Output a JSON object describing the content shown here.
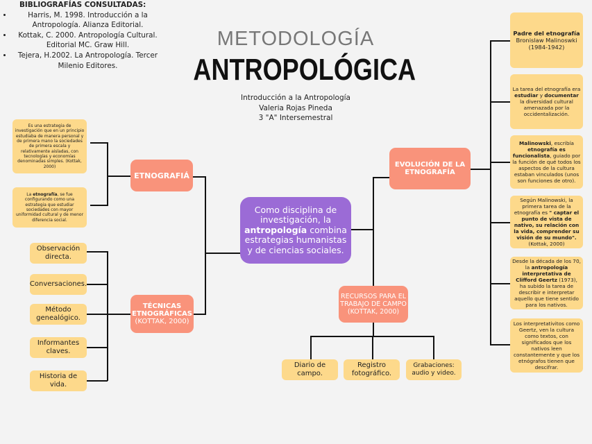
{
  "bibliography": {
    "title": "BIBLIOGRAFÍAS CONSULTADAS:",
    "items": [
      "Harris, M. 1998. Introducción a la Antropología. Alianza Editorial.",
      "Kottak, C. 2000. Antropología Cultural. Editorial MC. Graw Hill.",
      "Tejera, H.2002. La Antropología. Tercer Milenio Editores."
    ]
  },
  "title": {
    "line1": "METODOLOGÍA",
    "line2": "ANTROPOLÓGICA"
  },
  "subtitle": [
    "Introducción a la Antropología",
    "Valeria Rojas Pineda",
    "3 \"A\" Intersemestral"
  ],
  "center": [
    {
      "t": "Como disciplina de investigación, la "
    },
    {
      "t": "antropología",
      "b": true
    },
    {
      "t": " combina estrategias humanistas y de ciencias sociales."
    }
  ],
  "etnografia": {
    "label": "ETNOGRAFIÁ",
    "notes": [
      [
        {
          "t": "Es una estrategia de investigación que en un principio estudiaba de manera personal y de primera mano la sociedades de primera escala y relativamente aisladas, con tecnologías y economías denominadas simples. (Kottak, 2000)"
        }
      ],
      [
        {
          "t": "La "
        },
        {
          "t": "etnografía",
          "b": true
        },
        {
          "t": ", se fue configurando como una estrategia que estudiar sociedades con mayor uniformidad cultural y de menor diferencia social."
        }
      ]
    ]
  },
  "tecnicas": {
    "label": "TÉCNICAS ETNOGRÁFICAS",
    "cite": "(KOTTAK, 2000)",
    "items": [
      "Observación directa.",
      "Conversaciones.",
      "Método genealógico.",
      "Informantes claves.",
      "Historia de vida."
    ]
  },
  "recursos": {
    "label": "RECURSOS PARA EL TRABAJO DE CAMPO",
    "cite": "(KOTTAK, 2000)",
    "items": [
      "Diario de campo.",
      "Registro fotográfico.",
      "Grabaciones: audio y video."
    ]
  },
  "evolucion": {
    "label": "EVOLUCIÓN DE LA ETNOGRAFÍA",
    "notes": [
      [
        {
          "t": "Padre del etnografía",
          "b": true
        },
        {
          "t": "\nBronislaw Malinoswki\n(1984-1942)"
        }
      ],
      [
        {
          "t": "La tarea del etnografía era "
        },
        {
          "t": "estudiar",
          "b": true
        },
        {
          "t": " y "
        },
        {
          "t": "documentar",
          "b": true
        },
        {
          "t": " la diversidad cultural amenazada por la occidentalización."
        }
      ],
      [
        {
          "t": "Malinowski",
          "b": true
        },
        {
          "t": ", escribía "
        },
        {
          "t": "etnografía es funcionalista",
          "b": true
        },
        {
          "t": ", guiado por la función de qué todos los aspectos de la cultura estaban vinculados (unos son funciones de otro)."
        }
      ],
      [
        {
          "t": "Según Malinowski, la primera tarea de la etnografía es "
        },
        {
          "t": "\" captar el punto de vista de nativo, su relación con la vida, comprender su visión de su mundo\".",
          "b": true
        },
        {
          "t": "\n(Kottak, 2000)"
        }
      ],
      [
        {
          "t": "Desde la década de los 70, la "
        },
        {
          "t": "antropología interpretativa de Clifford Geertz",
          "b": true
        },
        {
          "t": " (1973), ha subido la tarea de describir e interpretar aquello que tiene sentido para los nativos."
        }
      ],
      [
        {
          "t": "Los interpretativitos como Geertz, ven la cultura como textos, con significados que los nativos leen constantemente y que los etnógrafos tienen que descifrar."
        }
      ]
    ]
  },
  "colors": {
    "yellow": "#fdd98b",
    "salmon": "#f9937b",
    "purple": "#9b6bd6"
  }
}
